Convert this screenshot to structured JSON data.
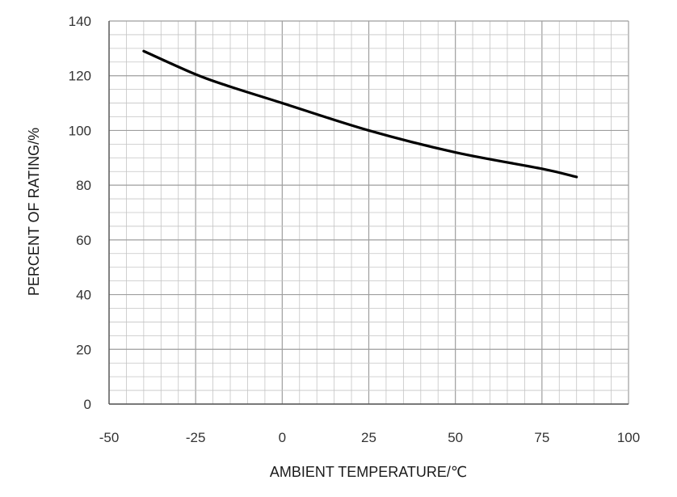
{
  "chart_data": {
    "type": "line",
    "title": "",
    "xlabel": "AMBIENT TEMPERATURE/℃",
    "ylabel": "PERCENT OF RATING/%",
    "xlim": [
      -50,
      100
    ],
    "ylim": [
      0,
      140
    ],
    "xticks": [
      -50,
      -25,
      0,
      25,
      50,
      75,
      100
    ],
    "yticks": [
      0,
      20,
      40,
      60,
      80,
      100,
      120,
      140
    ],
    "x_tick_labels": [
      "-50",
      "-25",
      "0",
      "25",
      "50",
      "75",
      "100"
    ],
    "y_tick_labels": [
      "0",
      "20",
      "40",
      "60",
      "80",
      "100",
      "120",
      "140"
    ],
    "grid": true,
    "legend": "none",
    "colors": {
      "line": "#000000",
      "grid_major": "#9e9e9e",
      "grid_minor": "#c4c4c4",
      "text": "#333333"
    },
    "series": [
      {
        "x": [
          -40,
          -25,
          -15,
          0,
          25,
          50,
          75,
          85
        ],
        "y": [
          129,
          120.5,
          116,
          110,
          100,
          92,
          86,
          83
        ]
      }
    ]
  }
}
